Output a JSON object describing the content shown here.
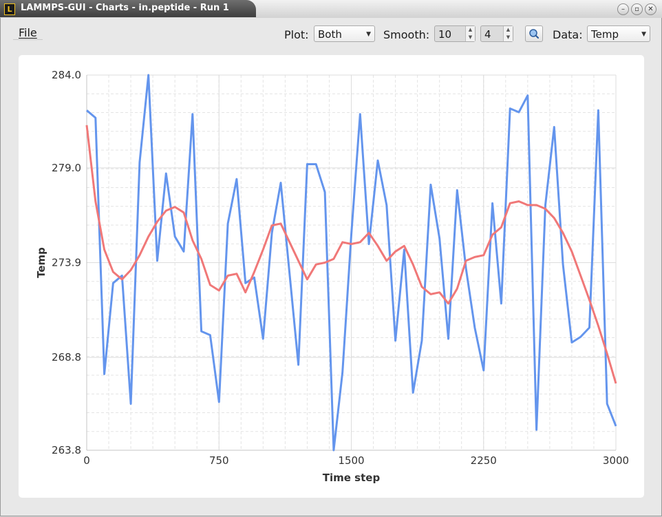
{
  "window": {
    "title": "LAMMPS-GUI - Charts - in.peptide - Run 1",
    "app_icon_letter": "L"
  },
  "menubar": {
    "file_label": "File"
  },
  "toolbar": {
    "plot_label": "Plot:",
    "plot_value": "Both",
    "smooth_label": "Smooth:",
    "smooth_window": "10",
    "smooth_order": "4",
    "data_label": "Data:",
    "data_value": "Temp"
  },
  "icons": {
    "zoom": "magnifier-icon",
    "minimize": "minimize-icon",
    "maximize": "maximize-icon",
    "close": "close-icon"
  },
  "chart_data": {
    "type": "line",
    "xlabel": "Time step",
    "ylabel": "Temp",
    "xlim": [
      0,
      3000
    ],
    "ylim": [
      263.8,
      284.0
    ],
    "x_ticks": [
      "0",
      "750",
      "1500",
      "2250",
      "3000"
    ],
    "y_ticks": [
      "284.0",
      "279.0",
      "273.9",
      "268.8",
      "263.8"
    ],
    "grid": true,
    "colors": {
      "raw": "#6495ed",
      "smoothed": "#f07878"
    },
    "series": [
      {
        "key": "raw",
        "x": [
          0,
          50,
          100,
          150,
          200,
          250,
          300,
          350,
          400,
          450,
          500,
          550,
          600,
          650,
          700,
          750,
          800,
          850,
          900,
          950,
          1000,
          1050,
          1100,
          1150,
          1200,
          1250,
          1300,
          1350,
          1400,
          1450,
          1500,
          1550,
          1600,
          1650,
          1700,
          1750,
          1800,
          1850,
          1900,
          1950,
          2000,
          2050,
          2100,
          2150,
          2200,
          2250,
          2300,
          2350,
          2400,
          2450,
          2500,
          2550,
          2600,
          2650,
          2700,
          2750,
          2800,
          2850,
          2900,
          2950,
          3000
        ],
        "values": [
          282.1,
          281.7,
          267.9,
          272.8,
          273.2,
          266.3,
          279.3,
          284.0,
          274.0,
          278.7,
          275.3,
          274.5,
          281.9,
          270.2,
          270.0,
          266.4,
          276.0,
          278.4,
          272.8,
          273.1,
          269.8,
          275.5,
          278.2,
          273.3,
          268.4,
          279.2,
          279.2,
          277.7,
          263.8,
          268.0,
          275.4,
          281.9,
          274.9,
          279.4,
          277.0,
          269.7,
          274.6,
          266.9,
          269.7,
          278.1,
          275.2,
          269.8,
          277.8,
          273.6,
          270.4,
          268.1,
          277.1,
          271.7,
          282.2,
          282.0,
          282.9,
          264.9,
          277.0,
          281.2,
          273.8,
          269.6,
          269.9,
          270.4,
          282.1,
          266.3,
          265.1
        ]
      },
      {
        "key": "smoothed",
        "x": [
          0,
          50,
          100,
          150,
          200,
          250,
          300,
          350,
          400,
          450,
          500,
          550,
          600,
          650,
          700,
          750,
          800,
          850,
          900,
          950,
          1000,
          1050,
          1100,
          1150,
          1200,
          1250,
          1300,
          1350,
          1400,
          1450,
          1500,
          1550,
          1600,
          1650,
          1700,
          1750,
          1800,
          1850,
          1900,
          1950,
          2000,
          2050,
          2100,
          2150,
          2200,
          2250,
          2300,
          2350,
          2400,
          2450,
          2500,
          2550,
          2600,
          2650,
          2700,
          2750,
          2800,
          2850,
          2900,
          2950,
          3000
        ],
        "values": [
          281.3,
          277.2,
          274.6,
          273.4,
          273.0,
          273.5,
          274.3,
          275.3,
          276.1,
          276.7,
          276.9,
          276.6,
          275.1,
          274.1,
          272.7,
          272.4,
          273.2,
          273.3,
          272.3,
          273.4,
          274.6,
          275.9,
          276.0,
          275.0,
          274.0,
          273.0,
          273.8,
          273.9,
          274.1,
          275.0,
          274.9,
          275.0,
          275.5,
          274.8,
          274.0,
          274.5,
          274.8,
          273.8,
          272.6,
          272.2,
          272.3,
          271.7,
          272.5,
          274.0,
          274.2,
          274.3,
          275.4,
          275.8,
          277.1,
          277.2,
          277.0,
          277.0,
          276.8,
          276.3,
          275.5,
          274.5,
          273.2,
          271.9,
          270.5,
          269.0,
          267.4
        ]
      }
    ]
  }
}
